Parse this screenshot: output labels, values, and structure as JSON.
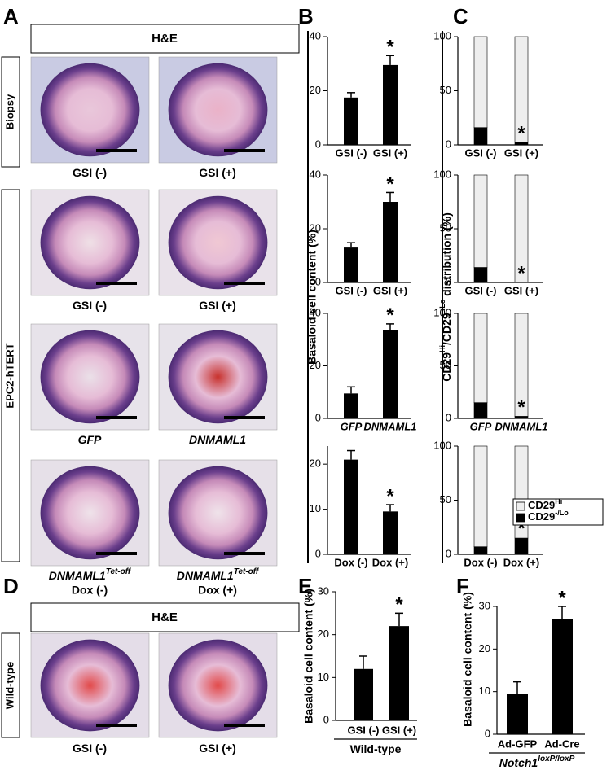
{
  "panel_letters": [
    "A",
    "B",
    "C",
    "D",
    "E",
    "F"
  ],
  "image_panels": {
    "A": {
      "header": "H&E",
      "row_labels": [
        "Biopsy",
        "EPC2-hTERT"
      ],
      "captions": [
        {
          "text": "GSI (-)"
        },
        {
          "text": "GSI (+)"
        },
        {
          "text": "GSI (-)"
        },
        {
          "text": "GSI (+)"
        },
        {
          "text": "GFP",
          "italic": true
        },
        {
          "text": "DNMAML1",
          "italic": true
        },
        {
          "text": "DNMAML1",
          "sup": "Tet-off",
          "line2": "Dox (-)",
          "italic": true
        },
        {
          "text": "DNMAML1",
          "sup": "Tet-off",
          "line2": "Dox (+)",
          "italic": true
        }
      ]
    },
    "D": {
      "header": "H&E",
      "row_labels": [
        "Wild-type"
      ],
      "captions": [
        {
          "text": "GSI (-)"
        },
        {
          "text": "GSI (+)"
        }
      ]
    }
  },
  "chart_data": [
    {
      "type": "bar",
      "panel": "B",
      "ylabel": "Basaloid cell content (%)",
      "categories": [
        "GSI (-)",
        "GSI (+)"
      ],
      "values": [
        17.5,
        29.5
      ],
      "errors": [
        1.8,
        3.5
      ],
      "significance": [
        null,
        "*"
      ],
      "color": "#000000",
      "ylim": [
        0,
        40
      ],
      "yticks": [
        0,
        20,
        40
      ]
    },
    {
      "type": "bar",
      "panel": "B",
      "categories": [
        "GSI (-)",
        "GSI (+)"
      ],
      "values": [
        13,
        30
      ],
      "errors": [
        1.8,
        3.5
      ],
      "significance": [
        null,
        "*"
      ],
      "color": "#000000",
      "ylim": [
        0,
        40
      ],
      "yticks": [
        0,
        20,
        40
      ]
    },
    {
      "type": "bar",
      "panel": "B",
      "categories": [
        "GFP",
        "DNMAML1"
      ],
      "category_style": "italic",
      "values": [
        9.5,
        33.5
      ],
      "errors": [
        2.5,
        2.5
      ],
      "significance": [
        null,
        "*"
      ],
      "color": "#000000",
      "ylim": [
        0,
        40
      ],
      "yticks": [
        0,
        20,
        40
      ]
    },
    {
      "type": "bar",
      "panel": "B",
      "categories": [
        "Dox (-)",
        "Dox (+)"
      ],
      "values": [
        21,
        9.5
      ],
      "errors": [
        2,
        1.5
      ],
      "significance": [
        null,
        "*"
      ],
      "color": "#000000",
      "ylim": [
        0,
        24
      ],
      "yticks": [
        0,
        10,
        20
      ]
    },
    {
      "type": "stacked_bar",
      "panel": "C",
      "ylabel_parts": [
        {
          "text": "CD29"
        },
        {
          "text": "Hi",
          "sup": true
        },
        {
          "text": "/CD29"
        },
        {
          "text": "-/Lo",
          "sup": true
        },
        {
          "text": " distribution (%)"
        }
      ],
      "categories": [
        "GSI (-)",
        "GSI (+)"
      ],
      "significance": [
        null,
        "*"
      ],
      "ylim": [
        0,
        100
      ],
      "yticks": [
        0,
        50,
        100
      ],
      "series": [
        {
          "name": "CD29",
          "name_sup": "-/Lo",
          "color": "#000000",
          "values": [
            16,
            2.5
          ],
          "errors": [
            1,
            0.5
          ]
        },
        {
          "name": "CD29",
          "name_sup": "Hi",
          "color": "#eeeeee",
          "values": [
            84,
            97.5
          ]
        }
      ]
    },
    {
      "type": "stacked_bar",
      "panel": "C",
      "categories": [
        "GSI (-)",
        "GSI (+)"
      ],
      "significance": [
        null,
        "*"
      ],
      "ylim": [
        0,
        100
      ],
      "yticks": [
        0,
        50,
        100
      ],
      "series": [
        {
          "name": "CD29",
          "name_sup": "-/Lo",
          "color": "#000000",
          "values": [
            14,
            0.5
          ],
          "errors": [
            1,
            0.3
          ]
        },
        {
          "name": "CD29",
          "name_sup": "Hi",
          "color": "#eeeeee",
          "values": [
            86,
            99.5
          ]
        }
      ]
    },
    {
      "type": "stacked_bar",
      "panel": "C",
      "categories": [
        "GFP",
        "DNMAML1"
      ],
      "category_style": "italic",
      "significance": [
        null,
        "*"
      ],
      "ylim": [
        0,
        100
      ],
      "yticks": [
        0,
        50,
        100
      ],
      "series": [
        {
          "name": "CD29",
          "name_sup": "-/Lo",
          "color": "#000000",
          "values": [
            15,
            2
          ],
          "errors": [
            2.5,
            0.5
          ]
        },
        {
          "name": "CD29",
          "name_sup": "Hi",
          "color": "#eeeeee",
          "values": [
            85,
            98
          ]
        }
      ]
    },
    {
      "type": "stacked_bar",
      "panel": "C",
      "categories": [
        "Dox (-)",
        "Dox (+)"
      ],
      "significance": [
        null,
        "*"
      ],
      "ylim": [
        0,
        100
      ],
      "yticks": [
        0,
        50,
        100
      ],
      "legend": "right",
      "series": [
        {
          "name": "CD29",
          "name_sup": "-/Lo",
          "color": "#000000",
          "values": [
            7,
            15
          ],
          "errors": [
            0.5,
            1
          ]
        },
        {
          "name": "CD29",
          "name_sup": "Hi",
          "color": "#eeeeee",
          "values": [
            93,
            85
          ]
        }
      ]
    },
    {
      "type": "bar",
      "panel": "E",
      "ylabel": "Basaloid cell content (%)",
      "xlabel": "Wild-type",
      "categories": [
        "GSI (-)",
        "GSI (+)"
      ],
      "values": [
        12,
        22
      ],
      "errors": [
        3,
        3
      ],
      "significance": [
        null,
        "*"
      ],
      "color": "#000000",
      "ylim": [
        0,
        30
      ],
      "yticks": [
        0,
        10,
        20,
        30
      ]
    },
    {
      "type": "bar",
      "panel": "F",
      "ylabel": "Basaloid cell content (%)",
      "xlabel": "Notch1",
      "xlabel_sup": "loxP/loxP",
      "xlabel_style": "italic",
      "categories": [
        "Ad-GFP",
        "Ad-Cre"
      ],
      "values": [
        9.5,
        27
      ],
      "errors": [
        2.8,
        3
      ],
      "significance": [
        null,
        "*"
      ],
      "color": "#000000",
      "ylim": [
        0,
        30
      ],
      "yticks": [
        0,
        10,
        20,
        30
      ]
    }
  ]
}
